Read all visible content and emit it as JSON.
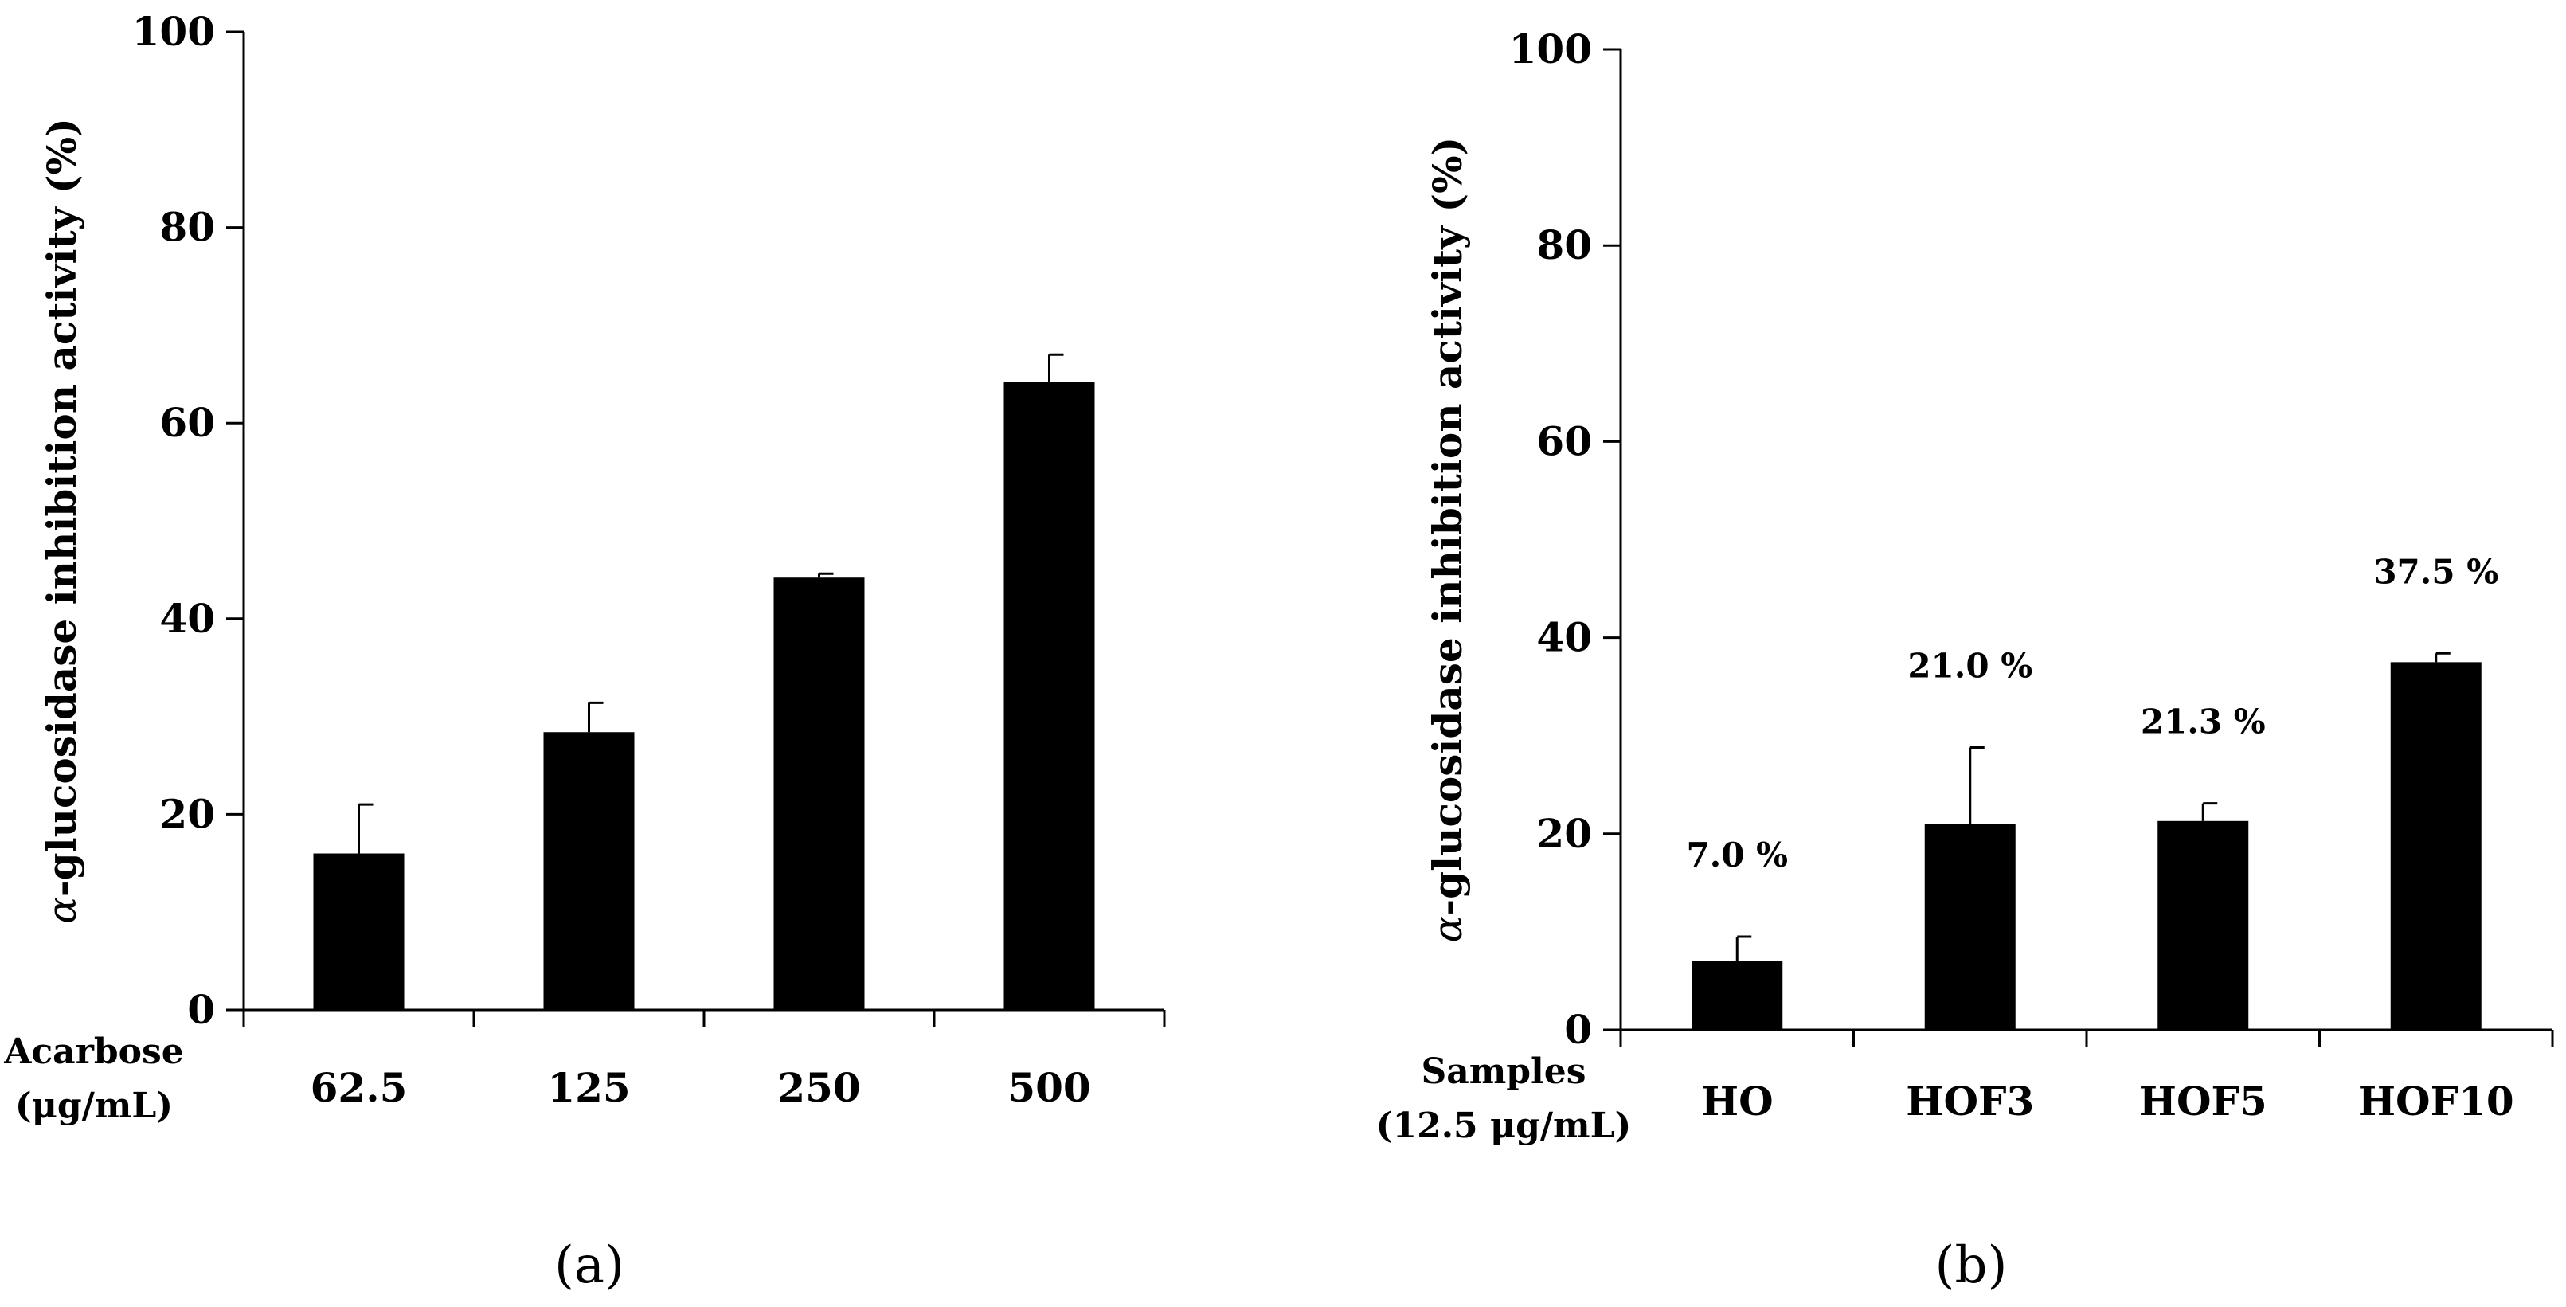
{
  "chart_data": [
    {
      "type": "bar",
      "panel_label": "(a)",
      "ylabel_italic_prefix": "α",
      "ylabel_rest": "-glucosidase inhibition activity (%)",
      "ylim": [
        0,
        100
      ],
      "yticks": [
        0,
        20,
        40,
        60,
        80,
        100
      ],
      "xlabel_lines": [
        "Acarbose",
        "(μg/mL)"
      ],
      "categories": [
        "62.5",
        "125",
        "250",
        "500"
      ],
      "values": [
        16.0,
        28.4,
        44.2,
        64.2
      ],
      "errors": [
        5.0,
        3.0,
        0.4,
        2.8
      ],
      "data_labels": []
    },
    {
      "type": "bar",
      "panel_label": "(b)",
      "ylabel_italic_prefix": "α",
      "ylabel_rest": "-glucosidase inhibition activity (%)",
      "ylim": [
        0,
        100
      ],
      "yticks": [
        0,
        20,
        40,
        60,
        80,
        100
      ],
      "xlabel_lines": [
        "Samples",
        "(12.5 μg/mL)"
      ],
      "categories": [
        "HO",
        "HOF3",
        "HOF5",
        "HOF10"
      ],
      "values": [
        7.0,
        21.0,
        21.3,
        37.5
      ],
      "errors": [
        2.5,
        7.8,
        1.8,
        0.9
      ],
      "data_labels": [
        "7.0 %",
        "21.0 %",
        "21.3 %",
        "37.5 %"
      ]
    }
  ]
}
